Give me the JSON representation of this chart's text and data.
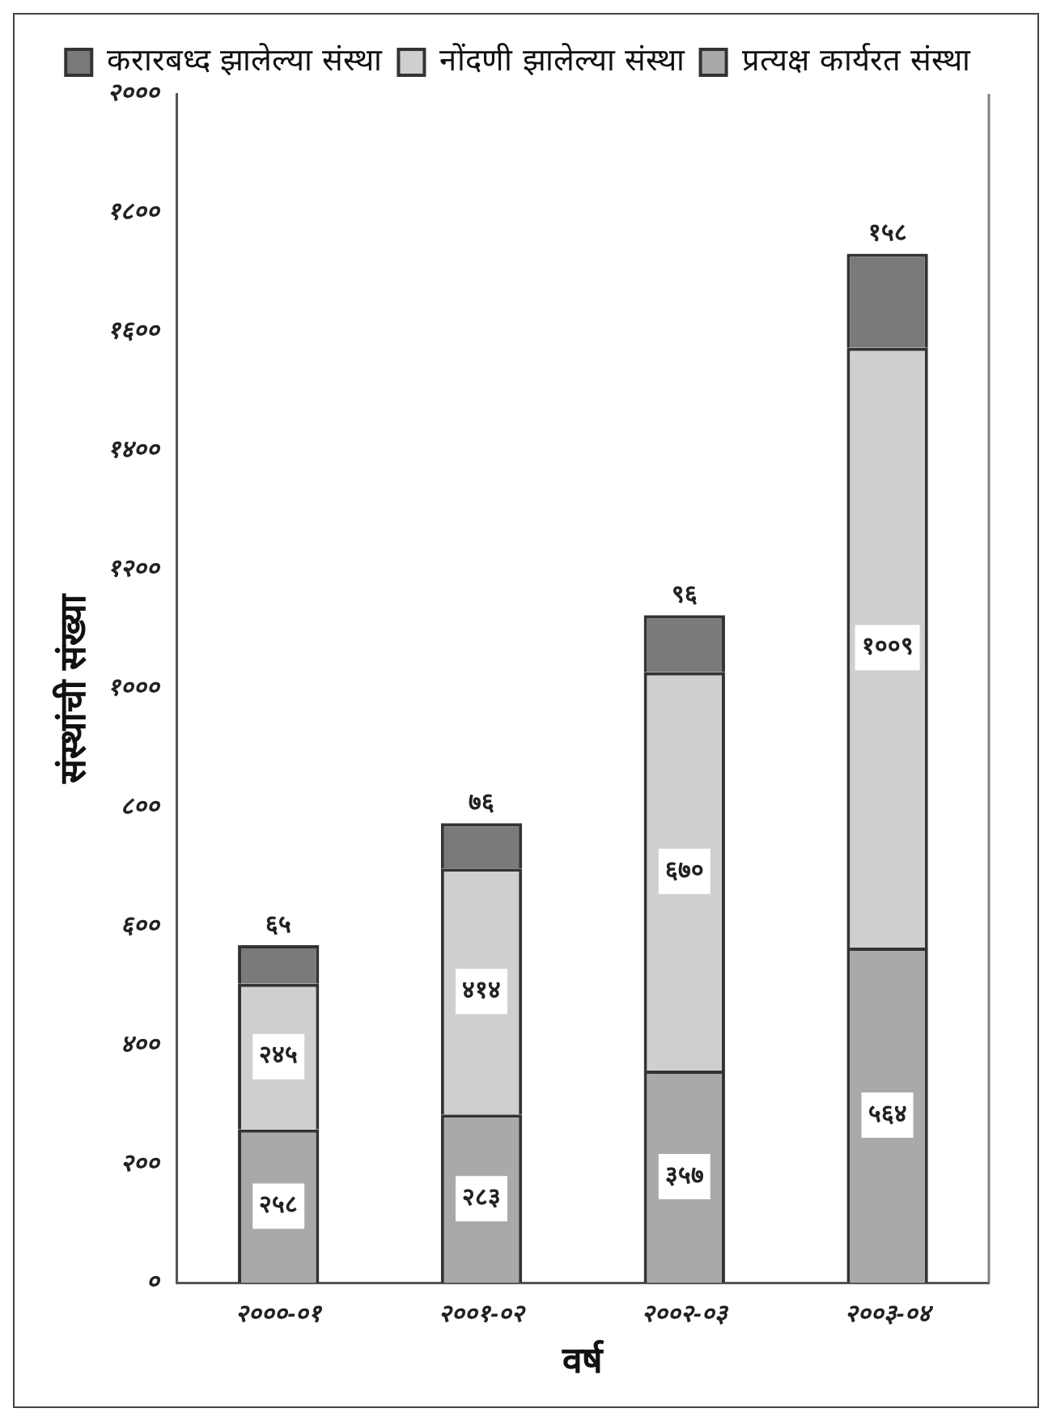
{
  "chart_data": {
    "type": "bar",
    "stacked": true,
    "xlabel": "वर्ष",
    "ylabel": "संस्थांची संख्या",
    "categories": [
      "२०००-०१",
      "२००१-०२",
      "२००२-०३",
      "२००३-०४"
    ],
    "series": [
      {
        "name": "प्रत्यक्ष कार्यरत संस्था",
        "color": "#a9a9a9",
        "values": [
          258,
          283,
          357,
          564
        ],
        "value_labels": [
          "२५८",
          "२८३",
          "३५७",
          "५६४"
        ]
      },
      {
        "name": "नोंदणी झालेल्या संस्था",
        "color": "#cfcfcf",
        "values": [
          245,
          414,
          670,
          1009
        ],
        "value_labels": [
          "२४५",
          "४१४",
          "६७०",
          "१००९"
        ]
      },
      {
        "name": "करारबध्द झालेल्या संस्था",
        "color": "#7a7a7a",
        "values": [
          65,
          76,
          96,
          158
        ],
        "value_labels": [
          "६५",
          "७६",
          "९६",
          "१५८"
        ]
      }
    ],
    "ylim": [
      0,
      2000
    ],
    "yticks": [
      {
        "value": 0,
        "label": "०"
      },
      {
        "value": 200,
        "label": "२००"
      },
      {
        "value": 400,
        "label": "४००"
      },
      {
        "value": 600,
        "label": "६००"
      },
      {
        "value": 800,
        "label": "८००"
      },
      {
        "value": 1000,
        "label": "१०००"
      },
      {
        "value": 1200,
        "label": "१२००"
      },
      {
        "value": 1400,
        "label": "१४००"
      },
      {
        "value": 1600,
        "label": "१६००"
      },
      {
        "value": 1800,
        "label": "१८००"
      },
      {
        "value": 2000,
        "label": "२०००"
      }
    ],
    "grid": false,
    "legend": "top"
  }
}
